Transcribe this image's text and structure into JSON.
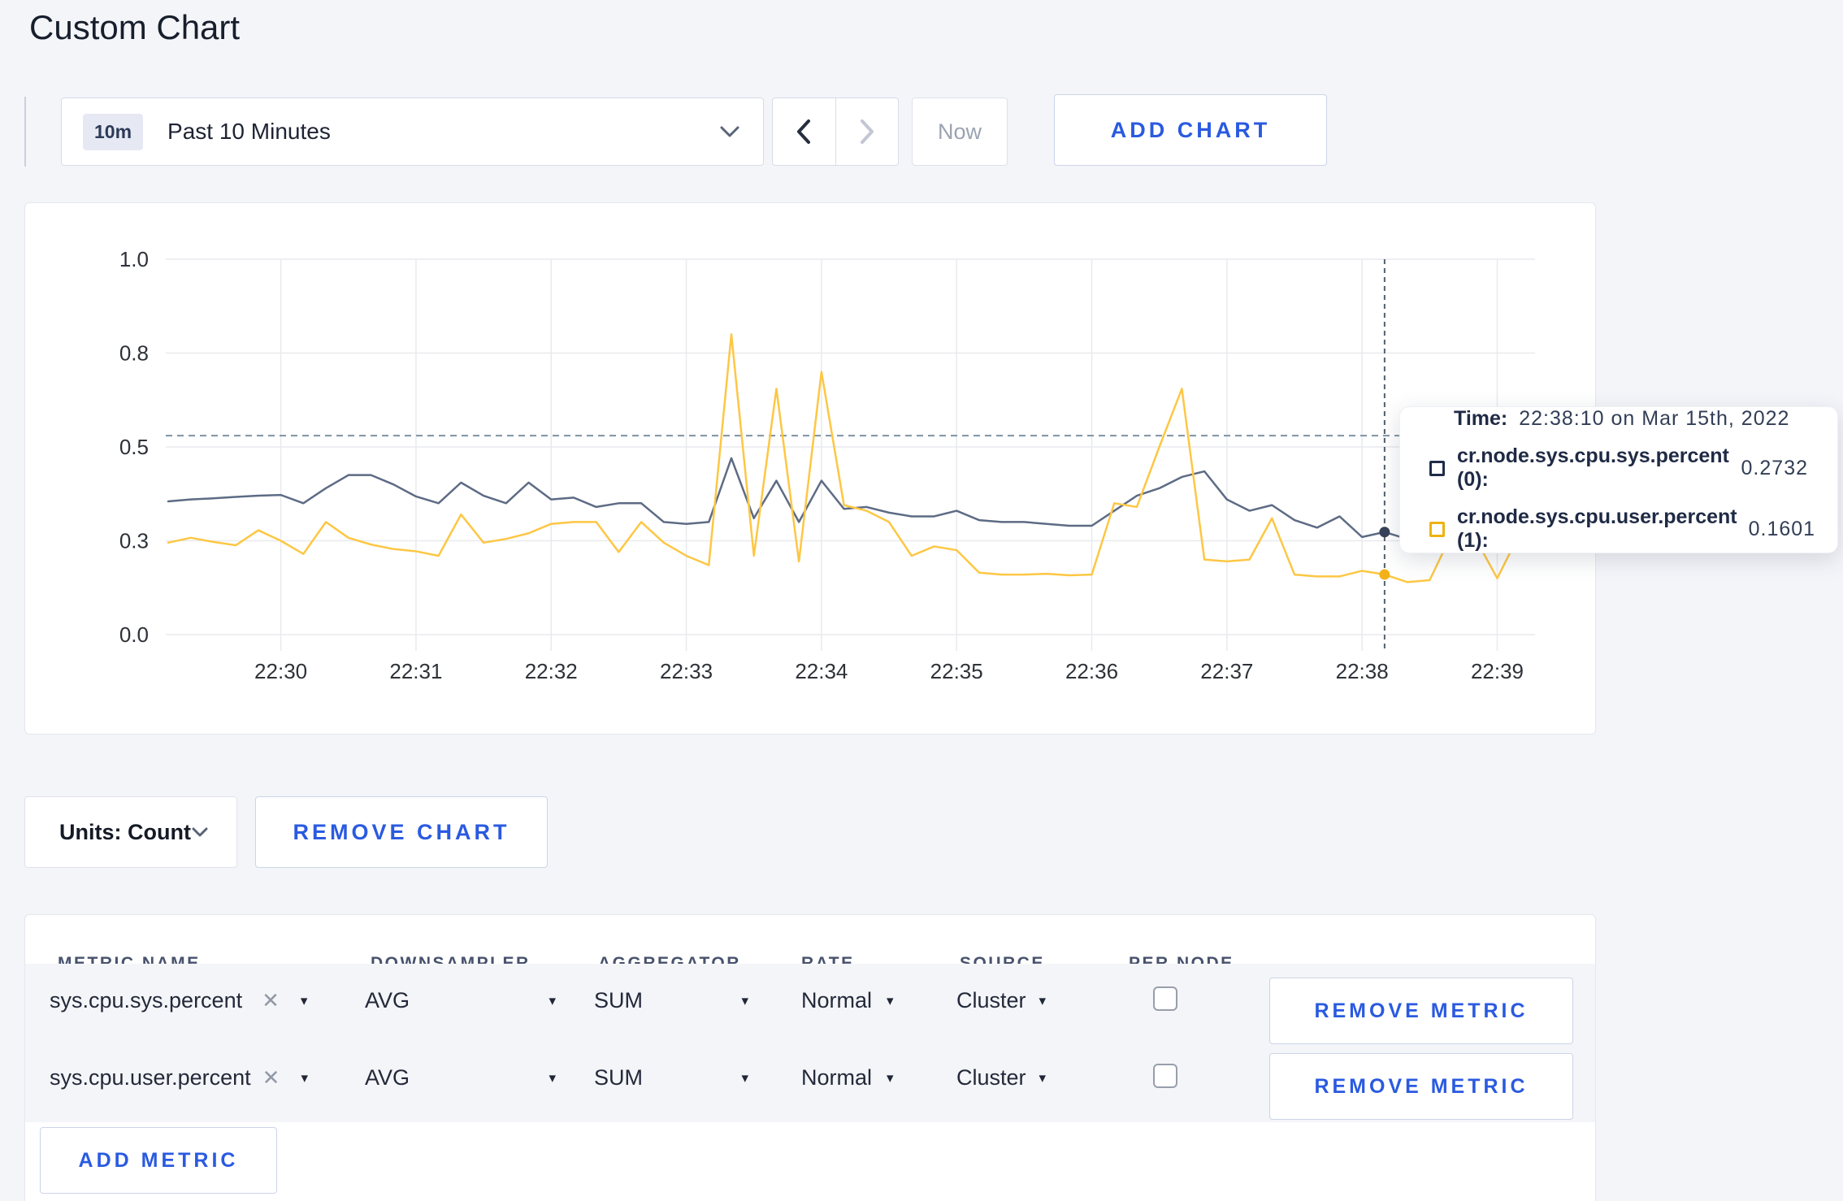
{
  "page": {
    "title": "Custom Chart"
  },
  "toolbar": {
    "time_range": {
      "badge": "10m",
      "label": "Past 10 Minutes"
    },
    "now_label": "Now",
    "add_chart_label": "ADD CHART"
  },
  "glyphs": {
    "caret_down": "▾",
    "close": "✕"
  },
  "chart_data": {
    "type": "line",
    "title": "",
    "xlabel": "",
    "ylabel": "",
    "ylim": [
      0,
      1
    ],
    "grid": true,
    "legend_position": "none",
    "x": [
      "22:29:10",
      "22:29:20",
      "22:29:30",
      "22:29:40",
      "22:29:50",
      "22:30:00",
      "22:30:10",
      "22:30:20",
      "22:30:30",
      "22:30:40",
      "22:30:50",
      "22:31:00",
      "22:31:10",
      "22:31:20",
      "22:31:30",
      "22:31:40",
      "22:31:50",
      "22:32:00",
      "22:32:10",
      "22:32:20",
      "22:32:30",
      "22:32:40",
      "22:32:50",
      "22:33:00",
      "22:33:10",
      "22:33:20",
      "22:33:30",
      "22:33:40",
      "22:33:50",
      "22:34:00",
      "22:34:10",
      "22:34:20",
      "22:34:30",
      "22:34:40",
      "22:34:50",
      "22:35:00",
      "22:35:10",
      "22:35:20",
      "22:35:30",
      "22:35:40",
      "22:35:50",
      "22:36:00",
      "22:36:10",
      "22:36:20",
      "22:36:30",
      "22:36:40",
      "22:36:50",
      "22:37:00",
      "22:37:10",
      "22:37:20",
      "22:37:30",
      "22:37:40",
      "22:37:50",
      "22:38:00",
      "22:38:10",
      "22:38:20",
      "22:38:30",
      "22:38:40",
      "22:38:50",
      "22:39:00",
      "22:39:10"
    ],
    "series": [
      {
        "name": "cr.node.sys.cpu.sys.percent",
        "color": "#5d6b84",
        "dot_color": "#37425a",
        "values": [
          0.355,
          0.36,
          0.363,
          0.367,
          0.37,
          0.372,
          0.35,
          0.39,
          0.425,
          0.425,
          0.4,
          0.368,
          0.35,
          0.405,
          0.37,
          0.35,
          0.405,
          0.36,
          0.365,
          0.34,
          0.35,
          0.35,
          0.3,
          0.295,
          0.3,
          0.47,
          0.31,
          0.41,
          0.3,
          0.41,
          0.335,
          0.34,
          0.325,
          0.315,
          0.315,
          0.33,
          0.305,
          0.3,
          0.3,
          0.295,
          0.29,
          0.29,
          0.33,
          0.37,
          0.39,
          0.42,
          0.435,
          0.36,
          0.33,
          0.345,
          0.305,
          0.285,
          0.315,
          0.26,
          0.2732,
          0.255,
          0.27,
          0.285,
          0.295,
          0.29,
          0.3
        ]
      },
      {
        "name": "cr.node.sys.cpu.user.percent",
        "color": "#fdc744",
        "dot_color": "#f2b217",
        "values": [
          0.245,
          0.258,
          0.247,
          0.238,
          0.278,
          0.25,
          0.215,
          0.3,
          0.258,
          0.24,
          0.228,
          0.222,
          0.21,
          0.32,
          0.245,
          0.255,
          0.27,
          0.295,
          0.3,
          0.3,
          0.22,
          0.3,
          0.245,
          0.21,
          0.185,
          0.8,
          0.21,
          0.655,
          0.195,
          0.7,
          0.345,
          0.33,
          0.3,
          0.21,
          0.235,
          0.225,
          0.165,
          0.16,
          0.16,
          0.162,
          0.158,
          0.16,
          0.35,
          0.34,
          0.5,
          0.655,
          0.2,
          0.195,
          0.2,
          0.31,
          0.16,
          0.155,
          0.155,
          0.17,
          0.1601,
          0.14,
          0.145,
          0.27,
          0.26,
          0.15,
          0.27
        ]
      }
    ],
    "y_axis": {
      "values": [
        0,
        0.25,
        0.5,
        0.75,
        1
      ],
      "labels": [
        "0.0",
        "0.3",
        "0.5",
        "0.8",
        "1.0"
      ]
    },
    "x_axis": {
      "tick_indices": [
        5,
        11,
        17,
        23,
        29,
        35,
        41,
        47,
        53,
        59
      ],
      "labels": [
        "22:30",
        "22:31",
        "22:32",
        "22:33",
        "22:34",
        "22:35",
        "22:36",
        "22:37",
        "22:38",
        "22:39"
      ]
    },
    "reference_line_y": 0.53,
    "crosshair": {
      "index": 54,
      "time": "22:38:10"
    },
    "grid_color": "#e9eaee",
    "crosshair_color": "#53616e",
    "reference_color": "#7d93a2"
  },
  "tooltip": {
    "time_label": "Time:",
    "time_value": "22:38:10 on Mar 15th, 2022",
    "rows": [
      {
        "label": "cr.node.sys.cpu.sys.percent (0):",
        "value": "0.2732",
        "swatch_color": "#1f2c49"
      },
      {
        "label": "cr.node.sys.cpu.user.percent (1):",
        "value": "0.1601",
        "swatch_color": "#eeb211"
      }
    ]
  },
  "chart_footer": {
    "units_label": "Units: Count",
    "remove_chart_label": "REMOVE CHART"
  },
  "metrics_table": {
    "headers": [
      "METRIC NAME",
      "DOWNSAMPLER",
      "AGGREGATOR",
      "RATE",
      "SOURCE",
      "PER NODE"
    ],
    "rows": [
      {
        "metric": "sys.cpu.sys.percent",
        "downsampler": "AVG",
        "aggregator": "SUM",
        "rate": "Normal",
        "source": "Cluster",
        "per_node_checked": false,
        "remove_label": "REMOVE METRIC"
      },
      {
        "metric": "sys.cpu.user.percent",
        "downsampler": "AVG",
        "aggregator": "SUM",
        "rate": "Normal",
        "source": "Cluster",
        "per_node_checked": false,
        "remove_label": "REMOVE METRIC"
      }
    ],
    "add_metric_label": "ADD METRIC"
  }
}
